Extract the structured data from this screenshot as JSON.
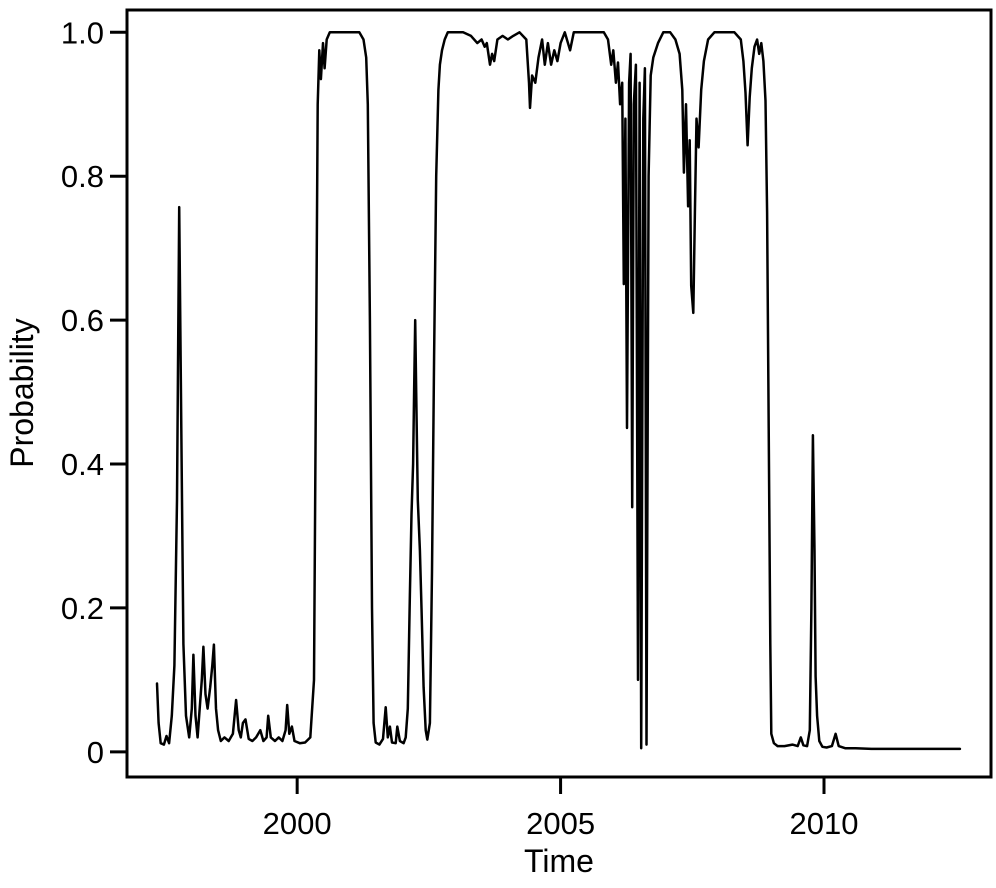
{
  "figure": {
    "background": "#ffffff",
    "line_color": "#000000"
  },
  "chart_data": {
    "type": "line",
    "title": "",
    "xlabel": "Time",
    "ylabel": "Probability",
    "xlim": [
      1996.77,
      2013.17
    ],
    "ylim": [
      -0.035,
      1.031
    ],
    "grid": false,
    "legend": "none",
    "x_ticks": [
      {
        "value": 2000,
        "label": "2000"
      },
      {
        "value": 2005,
        "label": "2005"
      },
      {
        "value": 2010,
        "label": "2010"
      }
    ],
    "y_ticks": [
      {
        "value": 0,
        "label": "0"
      },
      {
        "value": 0.2,
        "label": "0.2"
      },
      {
        "value": 0.4,
        "label": "0.4"
      },
      {
        "value": 0.6,
        "label": "0.6"
      },
      {
        "value": 0.8,
        "label": "0.8"
      },
      {
        "value": 1.0,
        "label": "1.0"
      }
    ],
    "series": [
      {
        "name": "probability",
        "points": [
          [
            1997.34,
            0.095
          ],
          [
            1997.37,
            0.04
          ],
          [
            1997.41,
            0.012
          ],
          [
            1997.47,
            0.01
          ],
          [
            1997.52,
            0.022
          ],
          [
            1997.57,
            0.012
          ],
          [
            1997.62,
            0.05
          ],
          [
            1997.67,
            0.12
          ],
          [
            1997.72,
            0.35
          ],
          [
            1997.76,
            0.757
          ],
          [
            1997.8,
            0.45
          ],
          [
            1997.84,
            0.15
          ],
          [
            1997.89,
            0.05
          ],
          [
            1997.95,
            0.02
          ],
          [
            1998.0,
            0.06
          ],
          [
            1998.03,
            0.135
          ],
          [
            1998.07,
            0.05
          ],
          [
            1998.11,
            0.02
          ],
          [
            1998.16,
            0.07
          ],
          [
            1998.19,
            0.1
          ],
          [
            1998.22,
            0.146
          ],
          [
            1998.26,
            0.08
          ],
          [
            1998.3,
            0.06
          ],
          [
            1998.35,
            0.09
          ],
          [
            1998.39,
            0.12
          ],
          [
            1998.42,
            0.149
          ],
          [
            1998.46,
            0.06
          ],
          [
            1998.5,
            0.03
          ],
          [
            1998.55,
            0.015
          ],
          [
            1998.62,
            0.02
          ],
          [
            1998.7,
            0.015
          ],
          [
            1998.78,
            0.025
          ],
          [
            1998.84,
            0.072
          ],
          [
            1998.89,
            0.03
          ],
          [
            1998.93,
            0.02
          ],
          [
            1998.97,
            0.04
          ],
          [
            1999.02,
            0.045
          ],
          [
            1999.08,
            0.018
          ],
          [
            1999.15,
            0.015
          ],
          [
            1999.22,
            0.02
          ],
          [
            1999.3,
            0.03
          ],
          [
            1999.36,
            0.015
          ],
          [
            1999.42,
            0.02
          ],
          [
            1999.45,
            0.05
          ],
          [
            1999.5,
            0.02
          ],
          [
            1999.58,
            0.015
          ],
          [
            1999.65,
            0.02
          ],
          [
            1999.72,
            0.015
          ],
          [
            1999.78,
            0.03
          ],
          [
            1999.81,
            0.065
          ],
          [
            1999.85,
            0.025
          ],
          [
            1999.9,
            0.035
          ],
          [
            1999.95,
            0.015
          ],
          [
            2000.05,
            0.012
          ],
          [
            2000.15,
            0.013
          ],
          [
            2000.25,
            0.02
          ],
          [
            2000.32,
            0.1
          ],
          [
            2000.36,
            0.55
          ],
          [
            2000.39,
            0.9
          ],
          [
            2000.42,
            0.975
          ],
          [
            2000.45,
            0.935
          ],
          [
            2000.49,
            0.985
          ],
          [
            2000.52,
            0.95
          ],
          [
            2000.56,
            0.99
          ],
          [
            2000.62,
            1.0
          ],
          [
            2000.75,
            1.0
          ],
          [
            2000.9,
            1.0
          ],
          [
            2001.05,
            1.0
          ],
          [
            2001.18,
            1.0
          ],
          [
            2001.26,
            0.99
          ],
          [
            2001.31,
            0.965
          ],
          [
            2001.34,
            0.9
          ],
          [
            2001.38,
            0.6
          ],
          [
            2001.42,
            0.2
          ],
          [
            2001.45,
            0.04
          ],
          [
            2001.49,
            0.013
          ],
          [
            2001.56,
            0.01
          ],
          [
            2001.63,
            0.018
          ],
          [
            2001.68,
            0.062
          ],
          [
            2001.72,
            0.02
          ],
          [
            2001.76,
            0.035
          ],
          [
            2001.8,
            0.013
          ],
          [
            2001.87,
            0.012
          ],
          [
            2001.9,
            0.035
          ],
          [
            2001.95,
            0.015
          ],
          [
            2002.02,
            0.012
          ],
          [
            2002.06,
            0.02
          ],
          [
            2002.1,
            0.06
          ],
          [
            2002.14,
            0.22
          ],
          [
            2002.17,
            0.33
          ],
          [
            2002.2,
            0.4
          ],
          [
            2002.22,
            0.5
          ],
          [
            2002.24,
            0.6
          ],
          [
            2002.26,
            0.5
          ],
          [
            2002.29,
            0.35
          ],
          [
            2002.33,
            0.28
          ],
          [
            2002.36,
            0.2
          ],
          [
            2002.4,
            0.09
          ],
          [
            2002.44,
            0.03
          ],
          [
            2002.47,
            0.017
          ],
          [
            2002.52,
            0.04
          ],
          [
            2002.56,
            0.25
          ],
          [
            2002.6,
            0.55
          ],
          [
            2002.64,
            0.8
          ],
          [
            2002.68,
            0.92
          ],
          [
            2002.71,
            0.955
          ],
          [
            2002.75,
            0.975
          ],
          [
            2002.8,
            0.99
          ],
          [
            2002.86,
            1.0
          ],
          [
            2003.0,
            1.0
          ],
          [
            2003.15,
            1.0
          ],
          [
            2003.3,
            0.995
          ],
          [
            2003.42,
            0.985
          ],
          [
            2003.5,
            0.99
          ],
          [
            2003.56,
            0.98
          ],
          [
            2003.6,
            0.985
          ],
          [
            2003.66,
            0.955
          ],
          [
            2003.7,
            0.97
          ],
          [
            2003.74,
            0.96
          ],
          [
            2003.8,
            0.99
          ],
          [
            2003.9,
            0.995
          ],
          [
            2004.0,
            0.99
          ],
          [
            2004.1,
            0.995
          ],
          [
            2004.22,
            1.0
          ],
          [
            2004.35,
            0.99
          ],
          [
            2004.4,
            0.93
          ],
          [
            2004.42,
            0.895
          ],
          [
            2004.46,
            0.94
          ],
          [
            2004.52,
            0.93
          ],
          [
            2004.58,
            0.965
          ],
          [
            2004.65,
            0.99
          ],
          [
            2004.7,
            0.955
          ],
          [
            2004.76,
            0.985
          ],
          [
            2004.82,
            0.955
          ],
          [
            2004.88,
            0.975
          ],
          [
            2004.94,
            0.96
          ],
          [
            2005.0,
            0.985
          ],
          [
            2005.08,
            1.0
          ],
          [
            2005.18,
            0.975
          ],
          [
            2005.25,
            1.0
          ],
          [
            2005.45,
            1.0
          ],
          [
            2005.65,
            1.0
          ],
          [
            2005.82,
            1.0
          ],
          [
            2005.9,
            0.99
          ],
          [
            2005.96,
            0.955
          ],
          [
            2006.0,
            0.975
          ],
          [
            2006.05,
            0.93
          ],
          [
            2006.09,
            0.958
          ],
          [
            2006.13,
            0.9
          ],
          [
            2006.17,
            0.93
          ],
          [
            2006.2,
            0.65
          ],
          [
            2006.23,
            0.88
          ],
          [
            2006.26,
            0.45
          ],
          [
            2006.3,
            0.93
          ],
          [
            2006.33,
            0.97
          ],
          [
            2006.36,
            0.34
          ],
          [
            2006.39,
            0.9
          ],
          [
            2006.43,
            0.955
          ],
          [
            2006.47,
            0.1
          ],
          [
            2006.5,
            0.93
          ],
          [
            2006.53,
            0.005
          ],
          [
            2006.57,
            0.88
          ],
          [
            2006.6,
            0.95
          ],
          [
            2006.63,
            0.01
          ],
          [
            2006.67,
            0.8
          ],
          [
            2006.71,
            0.94
          ],
          [
            2006.76,
            0.965
          ],
          [
            2006.85,
            0.985
          ],
          [
            2006.95,
            1.0
          ],
          [
            2007.08,
            1.0
          ],
          [
            2007.18,
            0.99
          ],
          [
            2007.26,
            0.97
          ],
          [
            2007.31,
            0.92
          ],
          [
            2007.34,
            0.805
          ],
          [
            2007.38,
            0.9
          ],
          [
            2007.42,
            0.758
          ],
          [
            2007.45,
            0.85
          ],
          [
            2007.48,
            0.648
          ],
          [
            2007.52,
            0.61
          ],
          [
            2007.55,
            0.75
          ],
          [
            2007.58,
            0.88
          ],
          [
            2007.62,
            0.84
          ],
          [
            2007.67,
            0.92
          ],
          [
            2007.72,
            0.96
          ],
          [
            2007.8,
            0.99
          ],
          [
            2007.92,
            1.0
          ],
          [
            2008.1,
            1.0
          ],
          [
            2008.3,
            1.0
          ],
          [
            2008.42,
            0.99
          ],
          [
            2008.47,
            0.96
          ],
          [
            2008.51,
            0.916
          ],
          [
            2008.55,
            0.843
          ],
          [
            2008.59,
            0.91
          ],
          [
            2008.63,
            0.95
          ],
          [
            2008.68,
            0.98
          ],
          [
            2008.73,
            0.99
          ],
          [
            2008.77,
            0.97
          ],
          [
            2008.81,
            0.985
          ],
          [
            2008.85,
            0.96
          ],
          [
            2008.89,
            0.905
          ],
          [
            2008.92,
            0.75
          ],
          [
            2008.95,
            0.45
          ],
          [
            2008.98,
            0.15
          ],
          [
            2009.0,
            0.025
          ],
          [
            2009.05,
            0.012
          ],
          [
            2009.12,
            0.008
          ],
          [
            2009.25,
            0.008
          ],
          [
            2009.4,
            0.01
          ],
          [
            2009.5,
            0.008
          ],
          [
            2009.56,
            0.02
          ],
          [
            2009.61,
            0.009
          ],
          [
            2009.68,
            0.008
          ],
          [
            2009.73,
            0.03
          ],
          [
            2009.76,
            0.2
          ],
          [
            2009.79,
            0.44
          ],
          [
            2009.82,
            0.28
          ],
          [
            2009.84,
            0.105
          ],
          [
            2009.87,
            0.05
          ],
          [
            2009.91,
            0.015
          ],
          [
            2009.97,
            0.007
          ],
          [
            2010.05,
            0.006
          ],
          [
            2010.15,
            0.008
          ],
          [
            2010.22,
            0.025
          ],
          [
            2010.28,
            0.008
          ],
          [
            2010.4,
            0.005
          ],
          [
            2010.6,
            0.005
          ],
          [
            2010.9,
            0.004
          ],
          [
            2011.3,
            0.004
          ],
          [
            2011.7,
            0.004
          ],
          [
            2012.1,
            0.004
          ],
          [
            2012.4,
            0.004
          ],
          [
            2012.58,
            0.004
          ]
        ]
      }
    ]
  }
}
